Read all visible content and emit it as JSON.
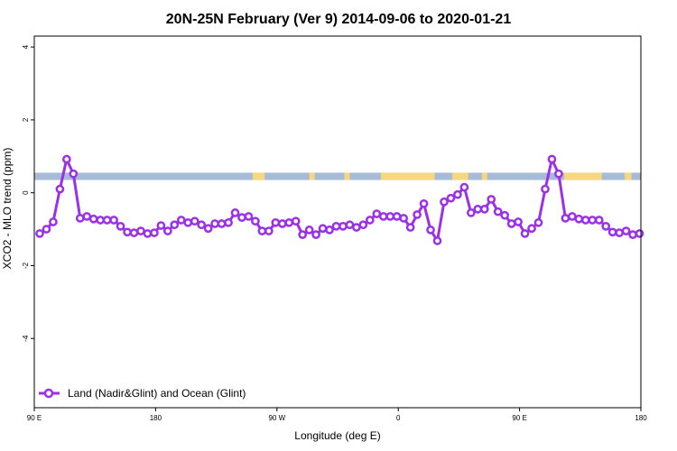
{
  "chart_data": {
    "type": "line",
    "title": "20N-25N February (Ver 9)   2014-09-06 to 2020-01-21",
    "xlabel": "Longitude (deg E)",
    "ylabel": "XCO2 - MLO trend (ppm)",
    "xlim": [
      90,
      540
    ],
    "ylim": [
      -5.9,
      4.3
    ],
    "x_ticks": [
      {
        "value": 90,
        "label": "90 E"
      },
      {
        "value": 180,
        "label": "180"
      },
      {
        "value": 270,
        "label": "90 W"
      },
      {
        "value": 360,
        "label": "0"
      },
      {
        "value": 450,
        "label": "90 E"
      },
      {
        "value": 540,
        "label": "180"
      }
    ],
    "y_ticks": [
      {
        "value": 4,
        "label": "4"
      },
      {
        "value": 2,
        "label": "2"
      },
      {
        "value": 0,
        "label": "0"
      },
      {
        "value": -2,
        "label": "-2"
      },
      {
        "value": -4,
        "label": "-4"
      }
    ],
    "grid": false,
    "legend_position": "bottom-left",
    "land_ocean_band": {
      "y_range": [
        0.35,
        0.55
      ],
      "ocean_color": "#a6bbd7",
      "land_color": "#f6d77d",
      "land_segments": [
        [
          252,
          261
        ],
        [
          294,
          298
        ],
        [
          320,
          324
        ],
        [
          347,
          387
        ],
        [
          400,
          412
        ],
        [
          422,
          426
        ],
        [
          483,
          511
        ],
        [
          528,
          533
        ]
      ]
    },
    "series": [
      {
        "name": "Land (Nadir&Glint) and Ocean (Glint)",
        "color": "#9b30e8",
        "x": [
          94,
          99,
          104,
          109,
          114,
          119,
          124,
          129,
          134,
          139,
          144,
          149,
          154,
          159,
          164,
          169,
          174,
          179,
          184,
          189,
          194,
          199,
          204,
          209,
          214,
          219,
          224,
          229,
          234,
          239,
          244,
          249,
          254,
          259,
          264,
          269,
          274,
          279,
          284,
          289,
          294,
          299,
          304,
          309,
          314,
          319,
          324,
          329,
          334,
          339,
          344,
          349,
          354,
          359,
          364,
          369,
          374,
          379,
          384,
          389,
          394,
          399,
          404,
          409,
          414,
          419,
          424,
          429,
          434,
          439,
          444,
          449,
          454,
          459,
          464,
          469,
          474,
          479,
          484,
          489,
          494,
          499,
          504,
          509,
          514,
          519,
          524,
          529,
          534,
          539
        ],
        "y": [
          -1.12,
          -1.0,
          -0.8,
          0.1,
          0.92,
          0.52,
          -0.7,
          -0.65,
          -0.72,
          -0.75,
          -0.75,
          -0.75,
          -0.92,
          -1.08,
          -1.1,
          -1.05,
          -1.12,
          -1.1,
          -0.9,
          -1.05,
          -0.88,
          -0.75,
          -0.82,
          -0.78,
          -0.88,
          -0.98,
          -0.85,
          -0.85,
          -0.82,
          -0.55,
          -0.68,
          -0.65,
          -0.78,
          -1.05,
          -1.05,
          -0.82,
          -0.85,
          -0.82,
          -0.78,
          -1.15,
          -1.02,
          -1.15,
          -0.98,
          -1.02,
          -0.92,
          -0.92,
          -0.88,
          -0.95,
          -0.88,
          -0.75,
          -0.58,
          -0.65,
          -0.65,
          -0.65,
          -0.7,
          -0.95,
          -0.6,
          -0.3,
          -1.02,
          -1.32,
          -0.25,
          -0.15,
          -0.05,
          0.15,
          -0.55,
          -0.45,
          -0.45,
          -0.18,
          -0.52,
          -0.62,
          -0.85,
          -0.8,
          -1.12,
          -0.98,
          -0.82,
          0.1,
          0.92,
          0.52,
          -0.7,
          -0.65,
          -0.72,
          -0.75,
          -0.75,
          -0.75,
          -0.92,
          -1.08,
          -1.1,
          -1.05,
          -1.15,
          -1.12
        ]
      }
    ]
  }
}
